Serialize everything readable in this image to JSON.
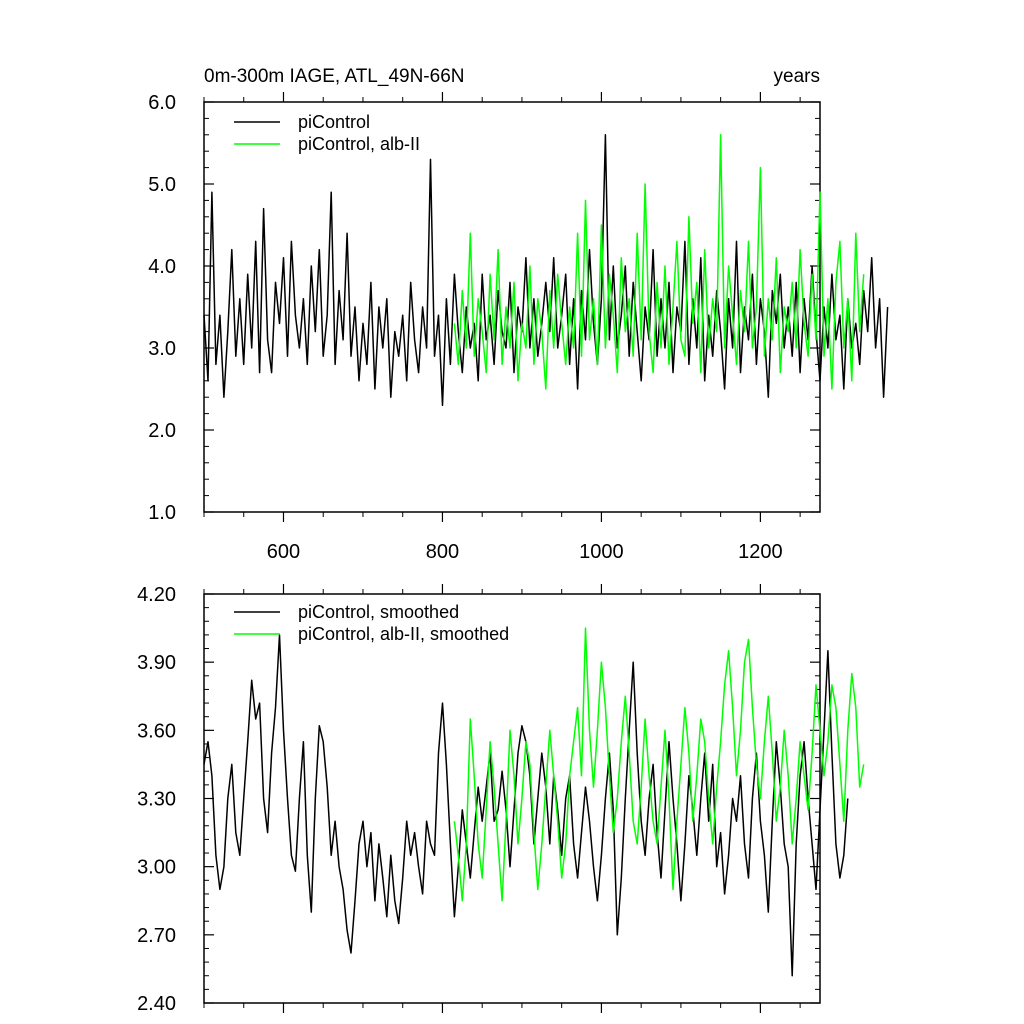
{
  "chart_data": [
    {
      "type": "line",
      "title_left": "0m-300m IAGE, ATL_49N-66N",
      "title_right": "years",
      "xlim": [
        500,
        1275
      ],
      "ylim": [
        1.0,
        6.0
      ],
      "x_ticks": [
        600,
        800,
        1000,
        1200
      ],
      "x_tick_labels": [
        "600",
        "800",
        "1000",
        "1200"
      ],
      "y_ticks": [
        1.0,
        2.0,
        3.0,
        4.0,
        5.0,
        6.0
      ],
      "y_tick_labels": [
        "1.0",
        "2.0",
        "3.0",
        "4.0",
        "5.0",
        "6.0"
      ],
      "legend": "top-left",
      "grid": false,
      "series": [
        {
          "name": "piControl",
          "color": "#000000",
          "x_start": 500,
          "x_step": 5,
          "values": [
            3.4,
            2.6,
            4.9,
            2.8,
            3.4,
            2.4,
            3.2,
            4.2,
            2.9,
            3.6,
            2.8,
            3.9,
            3.0,
            4.3,
            2.7,
            4.7,
            3.1,
            2.7,
            3.8,
            3.3,
            4.1,
            2.9,
            4.3,
            3.4,
            3.0,
            3.6,
            2.8,
            4.0,
            3.2,
            4.2,
            2.9,
            3.4,
            4.9,
            2.8,
            3.7,
            3.1,
            4.4,
            2.9,
            3.5,
            2.6,
            3.3,
            2.8,
            3.8,
            2.5,
            3.5,
            3.0,
            3.6,
            2.4,
            3.2,
            2.9,
            3.4,
            2.6,
            3.8,
            3.1,
            2.7,
            3.5,
            3.0,
            5.3,
            2.9,
            3.4,
            2.3,
            3.6,
            2.8,
            3.9,
            3.2,
            2.7,
            3.5,
            3.0,
            3.3,
            2.6,
            3.9,
            3.1,
            3.4,
            2.8,
            3.7,
            3.2,
            3.0,
            3.8,
            2.7,
            3.5,
            3.2,
            4.1,
            3.0,
            3.6,
            2.9,
            3.3,
            3.8,
            3.2,
            4.1,
            3.0,
            3.4,
            3.9,
            2.8,
            3.6,
            2.5,
            3.7,
            3.1,
            4.2,
            3.3,
            2.8,
            3.6,
            5.6,
            3.1,
            4.0,
            3.0,
            3.4,
            4.0,
            2.9,
            3.8,
            3.2,
            2.6,
            3.5,
            3.1,
            4.2,
            2.9,
            3.6,
            3.0,
            3.8,
            2.7,
            3.5,
            3.2,
            4.3,
            2.8,
            3.6,
            3.0,
            4.1,
            2.6,
            3.4,
            2.9,
            3.7,
            3.2,
            2.5,
            3.6,
            3.0,
            4.3,
            2.7,
            3.5,
            3.1,
            3.9,
            2.8,
            3.6,
            3.2,
            2.4,
            3.7,
            3.3,
            3.9,
            3.0,
            3.5,
            2.9,
            3.8,
            2.7,
            3.6,
            3.1,
            4.0,
            3.2,
            2.6,
            3.5,
            3.0,
            3.9,
            3.1,
            3.4,
            2.5,
            3.6,
            3.0,
            3.3,
            2.8,
            3.7,
            3.2,
            4.1,
            3.0,
            3.6,
            2.4,
            3.5
          ]
        },
        {
          "name": "piControl, alb-II",
          "color": "#00ff00",
          "x_start": 815,
          "x_step": 5,
          "values": [
            3.3,
            2.8,
            3.7,
            3.0,
            4.4,
            2.9,
            3.6,
            3.2,
            2.7,
            3.9,
            3.1,
            4.2,
            2.8,
            3.5,
            3.0,
            3.8,
            2.6,
            3.3,
            3.0,
            4.0,
            2.8,
            3.6,
            3.2,
            2.5,
            3.7,
            3.0,
            3.9,
            3.3,
            2.8,
            3.5,
            3.0,
            4.4,
            2.9,
            4.8,
            3.1,
            3.6,
            2.8,
            4.5,
            3.0,
            3.9,
            3.4,
            2.7,
            4.1,
            3.2,
            3.6,
            2.9,
            4.4,
            3.1,
            5.0,
            3.2,
            2.7,
            3.8,
            3.0,
            4.0,
            2.8,
            3.5,
            4.3,
            3.1,
            2.9,
            4.6,
            3.3,
            3.8,
            2.7,
            4.2,
            3.0,
            3.6,
            3.2,
            5.6,
            3.0,
            4.0,
            3.4,
            2.8,
            3.7,
            3.2,
            4.3,
            3.0,
            3.5,
            5.2,
            2.9,
            3.6,
            3.1,
            4.1,
            2.7,
            3.5,
            3.2,
            3.8,
            3.0,
            4.2,
            3.3,
            2.9,
            3.9,
            3.1,
            4.9,
            2.9,
            3.6,
            2.5,
            3.8,
            4.3,
            3.0,
            3.6,
            2.6,
            4.4,
            3.2,
            3.9
          ]
        }
      ]
    },
    {
      "type": "line",
      "xlim": [
        500,
        1275
      ],
      "ylim": [
        2.4,
        4.2
      ],
      "x_ticks": [
        600,
        800,
        1000,
        1200
      ],
      "y_ticks": [
        2.4,
        2.7,
        3.0,
        3.3,
        3.6,
        3.9,
        4.2
      ],
      "y_tick_labels": [
        "2.40",
        "2.70",
        "3.00",
        "3.30",
        "3.60",
        "3.90",
        "4.20"
      ],
      "legend": "top-left",
      "grid": false,
      "series": [
        {
          "name": "piControl, smoothed",
          "color": "#000000",
          "x_start": 500,
          "x_step": 5,
          "values": [
            3.45,
            3.55,
            3.4,
            3.05,
            2.9,
            3.0,
            3.3,
            3.45,
            3.15,
            3.05,
            3.3,
            3.55,
            3.82,
            3.65,
            3.72,
            3.3,
            3.15,
            3.5,
            3.7,
            4.02,
            3.6,
            3.3,
            3.05,
            2.98,
            3.3,
            3.55,
            3.05,
            2.8,
            3.3,
            3.62,
            3.55,
            3.35,
            3.05,
            3.2,
            3.0,
            2.9,
            2.72,
            2.62,
            2.85,
            3.1,
            3.2,
            3.0,
            3.15,
            2.85,
            3.1,
            2.95,
            2.78,
            3.05,
            2.85,
            2.75,
            2.95,
            3.2,
            3.05,
            3.15,
            3.0,
            2.88,
            3.2,
            3.1,
            3.05,
            3.5,
            3.72,
            3.45,
            3.1,
            2.78,
            3.0,
            3.25,
            3.1,
            2.95,
            3.15,
            3.35,
            3.2,
            3.35,
            3.5,
            3.2,
            3.25,
            3.42,
            3.25,
            3.0,
            3.25,
            3.5,
            3.62,
            3.55,
            3.4,
            3.1,
            3.3,
            3.5,
            3.35,
            3.1,
            3.4,
            3.25,
            3.05,
            3.3,
            3.4,
            3.1,
            2.95,
            3.15,
            3.35,
            3.2,
            3.0,
            2.85,
            3.05,
            3.3,
            3.5,
            3.25,
            2.7,
            2.95,
            3.3,
            3.6,
            3.9,
            3.5,
            3.2,
            3.05,
            3.3,
            3.45,
            3.15,
            2.95,
            3.25,
            3.55,
            3.3,
            3.1,
            2.85,
            3.1,
            3.4,
            3.25,
            3.05,
            3.3,
            3.5,
            3.2,
            3.45,
            3.0,
            3.15,
            2.88,
            3.05,
            3.3,
            3.2,
            3.4,
            3.1,
            2.95,
            3.3,
            3.5,
            3.2,
            3.05,
            2.8,
            3.2,
            3.55,
            3.35,
            3.1,
            3.0,
            2.52,
            3.1,
            3.4,
            3.55,
            3.3,
            3.1,
            2.9,
            3.25,
            3.6,
            3.95,
            3.5,
            3.1,
            2.95,
            3.05,
            3.3
          ]
        },
        {
          "name": "piControl, alb-II, smoothed",
          "color": "#00ff00",
          "x_start": 815,
          "x_step": 5,
          "values": [
            3.2,
            3.05,
            2.85,
            3.1,
            3.65,
            3.4,
            3.1,
            2.95,
            3.25,
            3.55,
            3.35,
            3.1,
            2.85,
            3.2,
            3.6,
            3.4,
            3.1,
            3.3,
            3.55,
            3.45,
            3.15,
            2.9,
            3.1,
            3.35,
            3.6,
            3.4,
            3.2,
            2.95,
            3.1,
            3.4,
            3.55,
            3.7,
            3.4,
            4.05,
            3.6,
            3.35,
            3.6,
            3.9,
            3.7,
            3.4,
            3.15,
            3.3,
            3.55,
            3.75,
            3.5,
            3.2,
            3.1,
            3.35,
            3.65,
            3.4,
            3.2,
            3.1,
            3.35,
            3.6,
            3.3,
            2.9,
            3.2,
            3.45,
            3.7,
            3.5,
            3.2,
            3.4,
            3.65,
            3.55,
            3.3,
            3.1,
            3.35,
            3.55,
            3.8,
            3.95,
            3.7,
            3.4,
            3.6,
            3.9,
            4.0,
            3.7,
            3.45,
            3.3,
            3.55,
            3.75,
            3.5,
            3.2,
            3.35,
            3.6,
            3.4,
            3.1,
            3.3,
            3.55,
            3.4,
            3.25,
            3.5,
            3.8,
            3.6,
            3.4,
            3.55,
            3.8,
            3.7,
            3.45,
            3.2,
            3.6,
            3.85,
            3.7,
            3.35,
            3.45
          ]
        }
      ]
    }
  ]
}
